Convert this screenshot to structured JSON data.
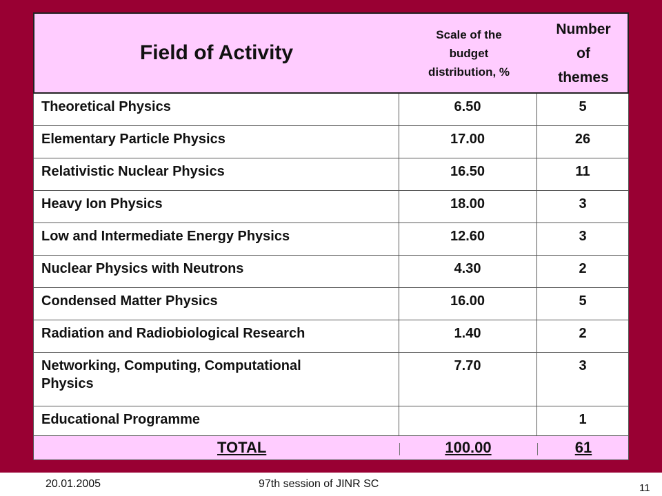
{
  "table": {
    "header": {
      "field": "Field of Activity",
      "scale": [
        "Scale of the",
        "budget",
        "distribution, %"
      ],
      "number": [
        "Number",
        "of",
        "themes"
      ]
    },
    "rows": [
      {
        "field": [
          "Theoretical Physics"
        ],
        "scale": "6.50",
        "number": "5"
      },
      {
        "field": [
          "Elementary Particle Physics"
        ],
        "scale": "17.00",
        "number": "26"
      },
      {
        "field": [
          "Relativistic Nuclear Physics"
        ],
        "scale": "16.50",
        "number": "11"
      },
      {
        "field": [
          "Heavy Ion Physics"
        ],
        "scale": "18.00",
        "number": "3"
      },
      {
        "field": [
          "Low and Intermediate Energy Physics"
        ],
        "scale": "12.60",
        "number": "3"
      },
      {
        "field": [
          "Nuclear Physics with Neutrons"
        ],
        "scale": "4.30",
        "number": "2"
      },
      {
        "field": [
          "Condensed Matter Physics"
        ],
        "scale": "16.00",
        "number": "5"
      },
      {
        "field": [
          "Radiation and Radiobiological Research"
        ],
        "scale": "1.40",
        "number": "2"
      },
      {
        "field": [
          "Networking, Computing, Computational",
          "Physics"
        ],
        "scale": "7.70",
        "number": "3"
      },
      {
        "field": [
          "Educational Programme"
        ],
        "scale": "",
        "number": "1"
      }
    ],
    "total": {
      "label": "TOTAL",
      "scale": "100.00",
      "number": "61"
    }
  },
  "footer": {
    "date": "20.01.2005",
    "session": "97th session of JINR SC",
    "page": "11"
  },
  "colors": {
    "frame": "#990033",
    "header_bg": "#ffccff",
    "total_bg": "#ffccff"
  }
}
